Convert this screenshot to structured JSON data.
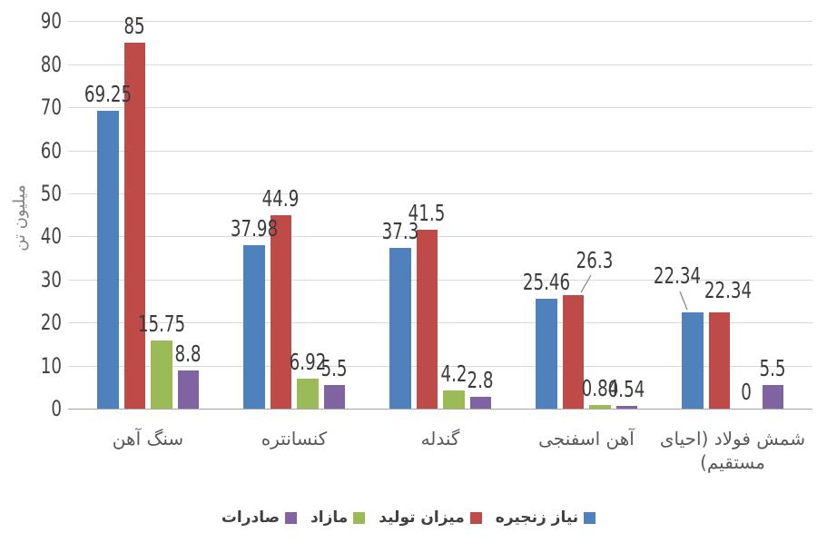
{
  "chart_data": {
    "type": "bar",
    "title": "",
    "ylabel": "میلیون تن",
    "ylim": [
      0,
      90
    ],
    "ytick_step": 10,
    "yticks": [
      "0",
      "10",
      "20",
      "30",
      "40",
      "50",
      "60",
      "70",
      "80",
      "90"
    ],
    "grid": true,
    "rtl": true,
    "legend_position": "bottom",
    "categories": [
      "سنگ آهن",
      "کنسانتره",
      "گندله",
      "آهن اسفنجی",
      "شمش فولاد (احیای مستقیم)"
    ],
    "series": [
      {
        "name": "نیاز زنجیره",
        "color": "#4F81BD",
        "values": [
          69.25,
          37.98,
          37.3,
          25.46,
          22.34
        ],
        "labels": [
          "69.25",
          "37.98",
          "37.3",
          "25.46",
          "22.34"
        ]
      },
      {
        "name": "میزان تولید",
        "color": "#BF4B48",
        "values": [
          85,
          44.9,
          41.5,
          26.3,
          22.34
        ],
        "labels": [
          "85",
          "44.9",
          "41.5",
          "26.3",
          "22.34"
        ]
      },
      {
        "name": "مازاد",
        "color": "#9BBB59",
        "values": [
          15.75,
          6.92,
          4.2,
          0.84,
          0
        ],
        "labels": [
          "15.75",
          "6.92",
          "4.2",
          "0.84",
          "0"
        ]
      },
      {
        "name": "صادرات",
        "color": "#8064A2",
        "values": [
          8.8,
          5.5,
          2.8,
          0.54,
          5.5
        ],
        "labels": [
          "8.8",
          "5.5",
          "2.8",
          "0.54",
          "5.5"
        ]
      }
    ],
    "colors": {
      "gridline": "#d9d9d9",
      "axis_line": "#a6a6a6",
      "tick_text": "#444444",
      "label_text": "#3b3b3b",
      "category_text": "#595959",
      "axis_title_text": "#7f7f7f"
    }
  }
}
